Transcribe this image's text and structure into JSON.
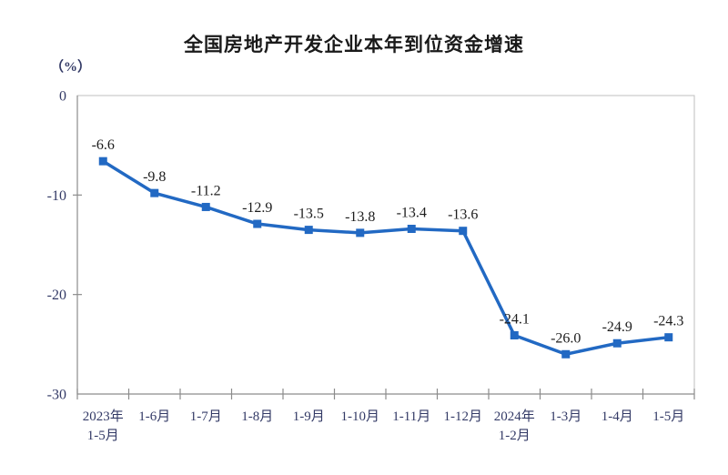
{
  "chart_data": {
    "type": "line",
    "title": "全国房地产开发企业本年到位资金增速",
    "unit": "（%）",
    "categories": [
      "2023年\n1-5月",
      "1-6月",
      "1-7月",
      "1-8月",
      "1-9月",
      "1-10月",
      "1-11月",
      "1-12月",
      "2024年\n1-2月",
      "1-3月",
      "1-4月",
      "1-5月"
    ],
    "values": [
      -6.6,
      -9.8,
      -11.2,
      -12.9,
      -13.5,
      -13.8,
      -13.4,
      -13.6,
      -24.1,
      -26.0,
      -24.9,
      -24.3
    ],
    "data_label_decimals": 1,
    "y_ticks": [
      0,
      -10,
      -20,
      -30
    ],
    "ylim": [
      -30,
      0
    ],
    "xlabel": "",
    "ylabel": "（%）",
    "grid": false,
    "legend": false,
    "marker": "square",
    "colors": {
      "line": "#2269C3",
      "marker": "#2269C3",
      "axis_text": "#333A66",
      "data_label": "#1C1C1C",
      "axis_line": "#8C8C8C",
      "border": "#BFBFBF",
      "title": "#1A1A1A",
      "background": "#FFFFFF"
    }
  }
}
